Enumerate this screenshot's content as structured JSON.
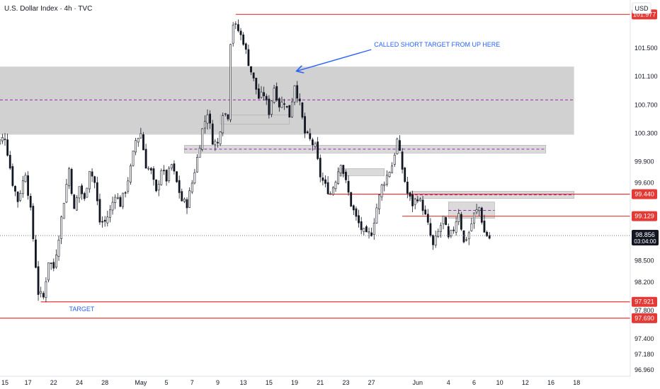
{
  "header": {
    "title": "U.S. Dollar Index · 4h · TVC",
    "currency": "USD"
  },
  "colors": {
    "candle": "#131722",
    "zone": "#d1d1d1",
    "zone_mid": "#9c27b0",
    "level": "#e53935",
    "annotation": "#2962ff",
    "grid_text": "#131722"
  },
  "chart_data": {
    "type": "candlestick",
    "ylim": [
      96.96,
      102.1
    ],
    "y_ticks": [
      101.5,
      101.1,
      100.7,
      100.3,
      99.9,
      99.6,
      98.5,
      98.2,
      97.8,
      97.4,
      97.18,
      96.96
    ],
    "y_tick_labels": [
      "101.500",
      "101.100",
      "100.700",
      "100.300",
      "99.900",
      "99.600",
      "98.500",
      "98.200",
      "97.800",
      "97.400",
      "97.180",
      "96.960"
    ],
    "x_tick_labels": [
      "15",
      "17",
      "22",
      "24",
      "28",
      "May",
      "5",
      "7",
      "9",
      "13",
      "15",
      "19",
      "21",
      "23",
      "27",
      "Jun",
      "4",
      "6",
      "10",
      "12",
      "16",
      "18"
    ],
    "x_tick_bars": [
      0,
      9,
      19,
      29,
      39,
      53,
      63,
      73,
      83,
      93,
      103,
      113,
      123,
      133,
      143,
      161,
      173,
      183,
      193,
      203,
      213,
      223
    ],
    "last_price": {
      "value": 98.856,
      "label": "98.856",
      "countdown": "03:04:00"
    },
    "levels": [
      {
        "value": 101.977,
        "label": "101.977",
        "from_bar": 90
      },
      {
        "value": 99.44,
        "label": "99.440",
        "from_bar": 126
      },
      {
        "value": 99.129,
        "label": "99.129",
        "from_bar": 155
      },
      {
        "value": 97.921,
        "label": "97.921",
        "from_bar": 14
      },
      {
        "value": 97.69,
        "label": "97.690",
        "from_bar": -5
      }
    ],
    "zones": [
      {
        "low": 100.28,
        "high": 101.24,
        "from_bar": -5,
        "to_bar": 222,
        "mid": 100.77
      },
      {
        "low": 100.02,
        "high": 100.13,
        "from_bar": 70,
        "to_bar": 211,
        "mid": 100.075
      },
      {
        "low": 99.38,
        "high": 99.48,
        "from_bar": 158,
        "to_bar": 222,
        "mid": 99.43
      },
      {
        "low": 99.1,
        "high": 99.33,
        "from_bar": 173,
        "to_bar": 191,
        "mid": 99.21
      },
      {
        "low": 100.43,
        "high": 100.56,
        "from_bar": 84,
        "to_bar": 111
      },
      {
        "low": 99.7,
        "high": 99.8,
        "from_bar": 130,
        "to_bar": 148
      }
    ],
    "annotations": [
      {
        "text": "CALLED SHORT TARGET FROM UP HERE",
        "price": 101.52,
        "bar": 144,
        "arrow_to_bar": 113,
        "arrow_to_price": 101.18
      },
      {
        "text": "TARGET",
        "price": 97.79,
        "bar": 25
      }
    ],
    "close_path": [
      [
        -5,
        100.1
      ],
      [
        0,
        100.25
      ],
      [
        3,
        99.6
      ],
      [
        5,
        99.35
      ],
      [
        8,
        99.75
      ],
      [
        10,
        99.2
      ],
      [
        13,
        98.05
      ],
      [
        15,
        97.98
      ],
      [
        17,
        98.5
      ],
      [
        19,
        98.4
      ],
      [
        21,
        98.85
      ],
      [
        23,
        99.35
      ],
      [
        25,
        99.8
      ],
      [
        27,
        99.2
      ],
      [
        29,
        99.55
      ],
      [
        31,
        99.35
      ],
      [
        33,
        99.8
      ],
      [
        35,
        99.6
      ],
      [
        37,
        99.05
      ],
      [
        39,
        99.05
      ],
      [
        41,
        99.2
      ],
      [
        43,
        99.45
      ],
      [
        45,
        99.3
      ],
      [
        47,
        99.5
      ],
      [
        49,
        99.8
      ],
      [
        51,
        100.2
      ],
      [
        53,
        100.3
      ],
      [
        55,
        99.85
      ],
      [
        57,
        99.75
      ],
      [
        59,
        99.45
      ],
      [
        61,
        99.8
      ],
      [
        63,
        99.65
      ],
      [
        65,
        99.85
      ],
      [
        67,
        99.6
      ],
      [
        69,
        99.35
      ],
      [
        71,
        99.3
      ],
      [
        73,
        99.6
      ],
      [
        75,
        99.95
      ],
      [
        77,
        100.35
      ],
      [
        79,
        100.6
      ],
      [
        81,
        100.2
      ],
      [
        83,
        100.15
      ],
      [
        85,
        100.6
      ],
      [
        87,
        100.55
      ],
      [
        88,
        101.6
      ],
      [
        89,
        101.85
      ],
      [
        91,
        101.75
      ],
      [
        93,
        101.6
      ],
      [
        95,
        101.3
      ],
      [
        97,
        101.05
      ],
      [
        99,
        100.8
      ],
      [
        101,
        100.85
      ],
      [
        103,
        100.6
      ],
      [
        105,
        100.95
      ],
      [
        107,
        100.7
      ],
      [
        109,
        100.75
      ],
      [
        111,
        100.55
      ],
      [
        113,
        101.0
      ],
      [
        115,
        100.7
      ],
      [
        117,
        100.3
      ],
      [
        119,
        100.2
      ],
      [
        121,
        100.1
      ],
      [
        123,
        99.7
      ],
      [
        125,
        99.55
      ],
      [
        127,
        99.45
      ],
      [
        129,
        99.65
      ],
      [
        131,
        99.9
      ],
      [
        133,
        99.6
      ],
      [
        135,
        99.3
      ],
      [
        137,
        99.1
      ],
      [
        139,
        98.95
      ],
      [
        141,
        98.85
      ],
      [
        143,
        98.9
      ],
      [
        145,
        99.25
      ],
      [
        147,
        99.55
      ],
      [
        149,
        99.7
      ],
      [
        151,
        99.85
      ],
      [
        153,
        100.2
      ],
      [
        155,
        99.8
      ],
      [
        157,
        99.45
      ],
      [
        159,
        99.3
      ],
      [
        161,
        99.4
      ],
      [
        163,
        99.25
      ],
      [
        165,
        99.0
      ],
      [
        167,
        98.7
      ],
      [
        169,
        98.9
      ],
      [
        171,
        99.1
      ],
      [
        173,
        98.8
      ],
      [
        175,
        98.95
      ],
      [
        177,
        99.2
      ],
      [
        179,
        98.75
      ],
      [
        181,
        98.9
      ],
      [
        183,
        99.15
      ],
      [
        185,
        99.25
      ],
      [
        187,
        98.9
      ],
      [
        189,
        98.82
      ]
    ]
  }
}
